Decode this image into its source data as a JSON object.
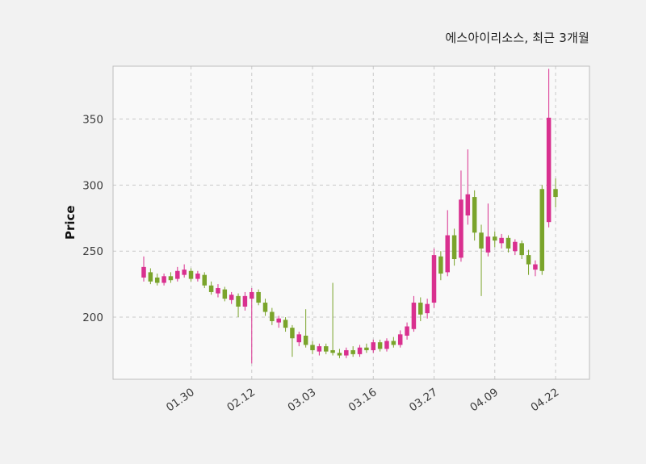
{
  "chart": {
    "title": "에스아이리소스, 최근 3개월",
    "ylabel": "Price"
  },
  "chart_data": {
    "type": "candlestick",
    "title": "에스아이리소스, 최근 3개월",
    "ylabel": "Price",
    "xlabel": "",
    "grid": true,
    "legend": false,
    "ylim": [
      153,
      390
    ],
    "y_ticks": [
      200,
      250,
      300,
      350
    ],
    "x_tick_labels": [
      "01.30",
      "02.12",
      "03.03",
      "03.16",
      "03.27",
      "04.09",
      "04.22"
    ],
    "x_tick_indices": [
      7,
      16,
      25,
      34,
      43,
      52,
      61
    ],
    "up_color": "#d9308f",
    "down_color": "#7aa42b",
    "plot_bg": "#f9f9f9",
    "figure_bg": "#f2f2f2",
    "grid_color": "#c9c9c9",
    "spine_color": "#bdbdbd",
    "ohlc_order": "open,high,low,close",
    "candles_ohlc": [
      [
        230,
        246,
        227,
        238
      ],
      [
        234,
        237,
        225,
        227
      ],
      [
        230,
        233,
        224,
        226
      ],
      [
        226,
        233,
        224,
        231
      ],
      [
        231,
        234,
        226,
        228
      ],
      [
        229,
        238,
        227,
        235
      ],
      [
        232,
        240,
        230,
        236
      ],
      [
        235,
        237,
        227,
        229
      ],
      [
        229,
        235,
        227,
        233
      ],
      [
        232,
        234,
        222,
        224
      ],
      [
        224,
        227,
        217,
        219
      ],
      [
        218,
        225,
        215,
        222
      ],
      [
        221,
        223,
        212,
        214
      ],
      [
        213,
        219,
        210,
        217
      ],
      [
        216,
        218,
        200,
        208
      ],
      [
        208,
        219,
        205,
        216
      ],
      [
        214,
        222,
        165,
        219
      ],
      [
        219,
        221,
        209,
        211
      ],
      [
        211,
        214,
        201,
        204
      ],
      [
        204,
        207,
        194,
        197
      ],
      [
        196,
        201,
        192,
        199
      ],
      [
        198,
        200,
        189,
        192
      ],
      [
        192,
        194,
        170,
        184
      ],
      [
        181,
        189,
        178,
        187
      ],
      [
        186,
        206,
        177,
        179
      ],
      [
        179,
        182,
        172,
        175
      ],
      [
        174,
        180,
        171,
        178
      ],
      [
        178,
        180,
        172,
        174
      ],
      [
        175,
        226,
        171,
        173
      ],
      [
        173,
        176,
        169,
        171
      ],
      [
        171,
        177,
        169,
        175
      ],
      [
        175,
        178,
        170,
        172
      ],
      [
        172,
        179,
        170,
        177
      ],
      [
        177,
        180,
        173,
        175
      ],
      [
        175,
        183,
        173,
        181
      ],
      [
        181,
        183,
        174,
        176
      ],
      [
        176,
        184,
        174,
        182
      ],
      [
        182,
        185,
        177,
        179
      ],
      [
        179,
        190,
        177,
        187
      ],
      [
        186,
        196,
        183,
        193
      ],
      [
        191,
        216,
        189,
        211
      ],
      [
        211,
        215,
        197,
        202
      ],
      [
        203,
        214,
        199,
        210
      ],
      [
        211,
        252,
        207,
        247
      ],
      [
        246,
        250,
        228,
        233
      ],
      [
        234,
        281,
        231,
        262
      ],
      [
        262,
        267,
        239,
        244
      ],
      [
        245,
        311,
        242,
        289
      ],
      [
        277,
        327,
        270,
        293
      ],
      [
        291,
        296,
        258,
        264
      ],
      [
        264,
        270,
        216,
        252
      ],
      [
        249,
        286,
        246,
        261
      ],
      [
        261,
        265,
        253,
        258
      ],
      [
        256,
        263,
        252,
        260
      ],
      [
        260,
        262,
        249,
        252
      ],
      [
        250,
        259,
        247,
        257
      ],
      [
        256,
        258,
        244,
        247
      ],
      [
        247,
        251,
        232,
        240
      ],
      [
        236,
        243,
        231,
        240
      ],
      [
        297,
        300,
        232,
        235
      ],
      [
        272,
        388,
        268,
        351
      ],
      [
        297,
        305,
        283,
        291
      ]
    ]
  }
}
